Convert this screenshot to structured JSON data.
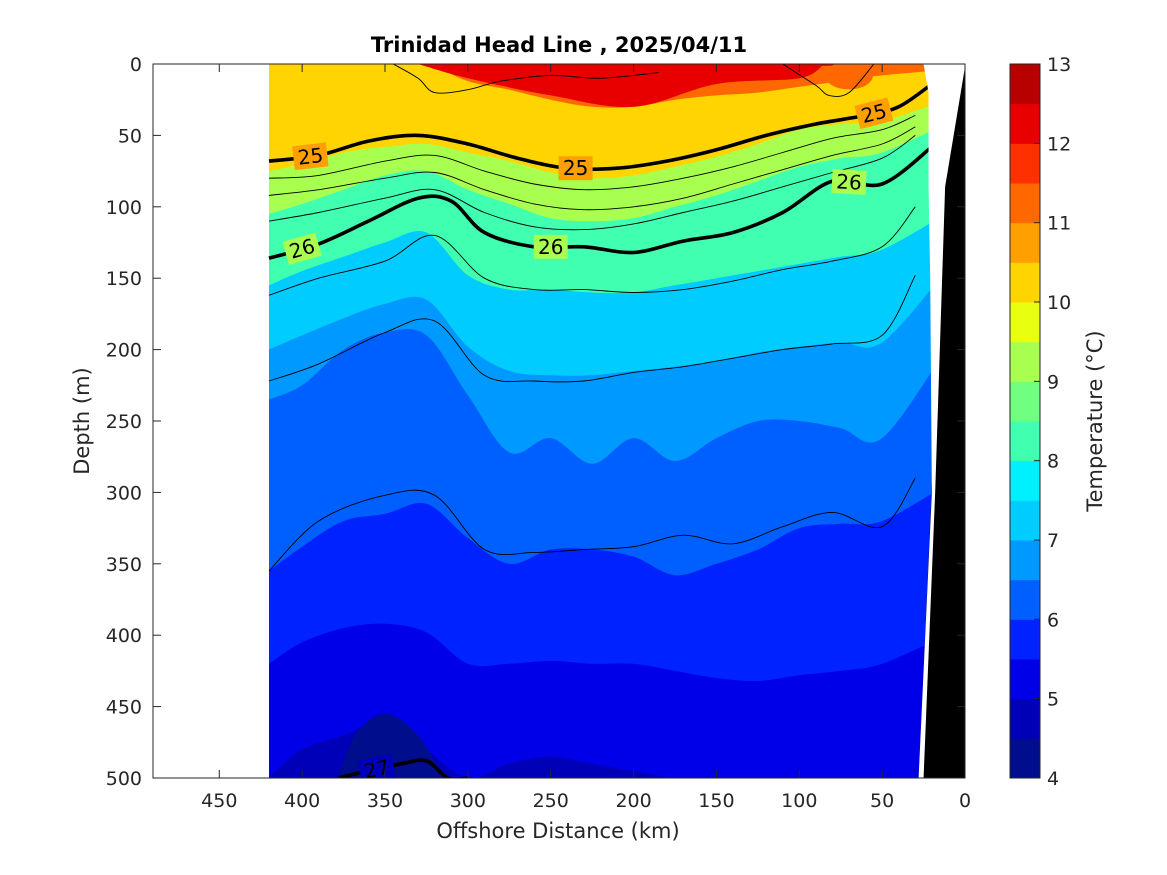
{
  "chart_data": {
    "type": "heatmap",
    "title": "Trinidad Head Line , 2025/04/11",
    "xlabel": "Offshore Distance (km)",
    "ylabel": "Depth (m)",
    "colorbar_label": "Temperature (°C)",
    "xlim": [
      490,
      0
    ],
    "ylim": [
      0,
      500
    ],
    "x_ticks": [
      450,
      400,
      350,
      300,
      250,
      200,
      150,
      100,
      50,
      0
    ],
    "y_ticks": [
      0,
      50,
      100,
      150,
      200,
      250,
      300,
      350,
      400,
      450,
      500
    ],
    "colorbar_ticks": [
      4,
      5,
      6,
      7,
      8,
      9,
      10,
      11,
      12,
      13
    ],
    "data_extent_km": [
      420,
      20
    ],
    "levels": [
      {
        "t": 4.0,
        "color": "#000d8c"
      },
      {
        "t": 4.5,
        "color": "#0000b8"
      },
      {
        "t": 5.0,
        "color": "#0000e8"
      },
      {
        "t": 5.5,
        "color": "#0022ff"
      },
      {
        "t": 6.0,
        "color": "#0060ff"
      },
      {
        "t": 6.5,
        "color": "#0099ff"
      },
      {
        "t": 7.0,
        "color": "#00ccff"
      },
      {
        "t": 7.5,
        "color": "#00f0ff"
      },
      {
        "t": 8.0,
        "color": "#40ffb0"
      },
      {
        "t": 8.5,
        "color": "#70ff80"
      },
      {
        "t": 9.0,
        "color": "#a8ff50"
      },
      {
        "t": 9.5,
        "color": "#e8ff10"
      },
      {
        "t": 10.0,
        "color": "#ffd400"
      },
      {
        "t": 10.5,
        "color": "#ffa000"
      },
      {
        "t": 11.0,
        "color": "#ff6800"
      },
      {
        "t": 11.5,
        "color": "#ff3000"
      },
      {
        "t": 12.0,
        "color": "#e80000"
      },
      {
        "t": 12.5,
        "color": "#b80000"
      }
    ],
    "isotherm_depths": {
      "x": [
        420,
        400,
        375,
        350,
        325,
        300,
        275,
        250,
        225,
        200,
        175,
        150,
        125,
        100,
        75,
        50,
        20
      ],
      "t_12": [
        0,
        0,
        0,
        0,
        0,
        0,
        2,
        8,
        12,
        10,
        8,
        6,
        4,
        2,
        1,
        0,
        0
      ],
      "t_11": [
        0,
        0,
        0,
        0,
        0,
        12,
        18,
        25,
        30,
        30,
        25,
        22,
        20,
        16,
        12,
        8,
        4
      ],
      "t_10": [
        75,
        70,
        62,
        58,
        56,
        62,
        68,
        76,
        80,
        78,
        72,
        65,
        56,
        46,
        42,
        40,
        25
      ],
      "t_9": [
        105,
        98,
        88,
        78,
        75,
        88,
        98,
        108,
        110,
        108,
        100,
        92,
        82,
        72,
        66,
        62,
        42
      ],
      "t_8": [
        155,
        145,
        135,
        125,
        118,
        148,
        158,
        158,
        160,
        160,
        155,
        150,
        145,
        140,
        135,
        130,
        105
      ],
      "t_7": [
        200,
        190,
        178,
        168,
        165,
        198,
        215,
        218,
        218,
        215,
        212,
        208,
        202,
        198,
        195,
        195,
        145
      ],
      "t_6_5": [
        235,
        225,
        200,
        188,
        190,
        232,
        272,
        262,
        280,
        262,
        278,
        262,
        250,
        250,
        255,
        262,
        200
      ],
      "t_6": [
        355,
        338,
        320,
        315,
        308,
        332,
        350,
        340,
        340,
        345,
        358,
        350,
        340,
        325,
        322,
        320,
        295
      ],
      "t_5_5": [
        420,
        405,
        395,
        392,
        398,
        420,
        420,
        418,
        420,
        420,
        425,
        430,
        432,
        428,
        425,
        420,
        400
      ],
      "t_5": [
        500,
        480,
        470,
        460,
        480,
        500,
        490,
        485,
        490,
        495,
        500,
        500,
        500,
        500,
        500,
        500,
        500
      ],
      "t_4_5": [
        500,
        500,
        500,
        470,
        490,
        500,
        500,
        500,
        500,
        500,
        500,
        500,
        500,
        500,
        500,
        500,
        500
      ]
    },
    "thin_contours": [
      {
        "x": [
          420,
          390,
          350,
          320,
          290,
          260,
          230,
          200,
          170,
          140,
          110,
          80,
          50,
          30
        ],
        "y": [
          80,
          78,
          68,
          64,
          75,
          84,
          88,
          86,
          80,
          72,
          62,
          52,
          46,
          36
        ]
      },
      {
        "x": [
          420,
          390,
          350,
          320,
          290,
          260,
          230,
          200,
          170,
          140,
          110,
          80,
          50,
          30
        ],
        "y": [
          92,
          88,
          80,
          76,
          88,
          98,
          102,
          100,
          94,
          84,
          74,
          64,
          56,
          44
        ]
      },
      {
        "x": [
          420,
          390,
          350,
          320,
          290,
          260,
          230,
          200,
          170,
          140,
          110,
          80,
          50,
          30
        ],
        "y": [
          110,
          104,
          94,
          88,
          104,
          114,
          116,
          112,
          104,
          96,
          86,
          76,
          66,
          50
        ]
      },
      {
        "x": [
          420,
          390,
          350,
          320,
          290,
          260,
          230,
          200,
          170,
          140,
          110,
          80,
          50,
          30
        ],
        "y": [
          162,
          150,
          138,
          120,
          150,
          158,
          158,
          160,
          158,
          152,
          144,
          138,
          128,
          100
        ]
      },
      {
        "x": [
          420,
          390,
          350,
          320,
          290,
          260,
          230,
          200,
          170,
          140,
          110,
          80,
          50,
          30
        ],
        "y": [
          222,
          210,
          188,
          180,
          218,
          222,
          222,
          216,
          212,
          206,
          200,
          196,
          190,
          148
        ]
      },
      {
        "x": [
          420,
          390,
          350,
          320,
          290,
          260,
          230,
          200,
          170,
          140,
          110,
          80,
          50,
          30
        ],
        "y": [
          355,
          320,
          302,
          302,
          340,
          342,
          340,
          338,
          330,
          336,
          324,
          314,
          324,
          290
        ]
      },
      {
        "x": [
          345,
          330,
          320,
          300,
          280,
          250,
          220,
          185
        ],
        "y": [
          0,
          10,
          20,
          18,
          12,
          8,
          10,
          6
        ]
      },
      {
        "x": [
          110,
          90,
          82,
          70,
          55
        ],
        "y": [
          0,
          15,
          22,
          20,
          0
        ]
      }
    ],
    "bold_contours": [
      {
        "label": "25",
        "x": [
          420,
          390,
          360,
          330,
          300,
          270,
          240,
          210,
          180,
          150,
          120,
          90,
          60,
          40,
          20
        ],
        "y": [
          68,
          64,
          54,
          50,
          56,
          66,
          73,
          73,
          68,
          60,
          50,
          42,
          36,
          30,
          14
        ],
        "label_at_km": [
          395,
          235,
          55
        ]
      },
      {
        "label": "26",
        "x": [
          420,
          390,
          360,
          330,
          310,
          290,
          260,
          230,
          200,
          170,
          140,
          110,
          80,
          50,
          20
        ],
        "y": [
          136,
          126,
          110,
          94,
          96,
          118,
          128,
          128,
          132,
          124,
          118,
          104,
          82,
          84,
          58
        ],
        "label_at_km": [
          400,
          250,
          70
        ]
      },
      {
        "label": "27",
        "x": [
          378,
          360,
          340,
          325,
          312,
          300
        ],
        "y": [
          500,
          495,
          490,
          488,
          500,
          500
        ],
        "label_at_km": [
          355
        ]
      }
    ]
  }
}
